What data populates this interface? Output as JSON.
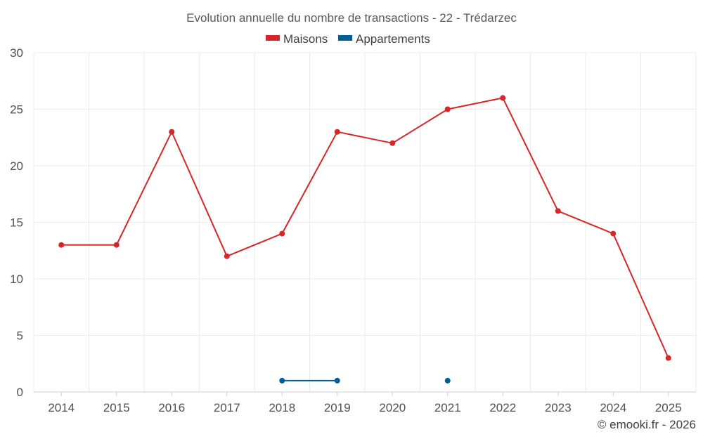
{
  "chart_data": {
    "type": "line",
    "title": "Evolution annuelle du nombre de transactions - 22 - Trédarzec",
    "categories": [
      "2014",
      "2015",
      "2016",
      "2017",
      "2018",
      "2019",
      "2020",
      "2021",
      "2022",
      "2023",
      "2024",
      "2025"
    ],
    "ylim": [
      0,
      30
    ],
    "yticks": [
      0,
      5,
      10,
      15,
      20,
      25,
      30
    ],
    "grid": true,
    "legend_position": "top-center",
    "series": [
      {
        "name": "Maisons",
        "color": "#d62728",
        "values": [
          13,
          13,
          23,
          12,
          14,
          23,
          22,
          25,
          26,
          16,
          14,
          3
        ]
      },
      {
        "name": "Appartements",
        "color": "#005f99",
        "values": [
          null,
          null,
          null,
          null,
          1,
          1,
          null,
          1,
          null,
          null,
          null,
          null
        ]
      }
    ],
    "credit": "© emooki.fr - 2026"
  }
}
